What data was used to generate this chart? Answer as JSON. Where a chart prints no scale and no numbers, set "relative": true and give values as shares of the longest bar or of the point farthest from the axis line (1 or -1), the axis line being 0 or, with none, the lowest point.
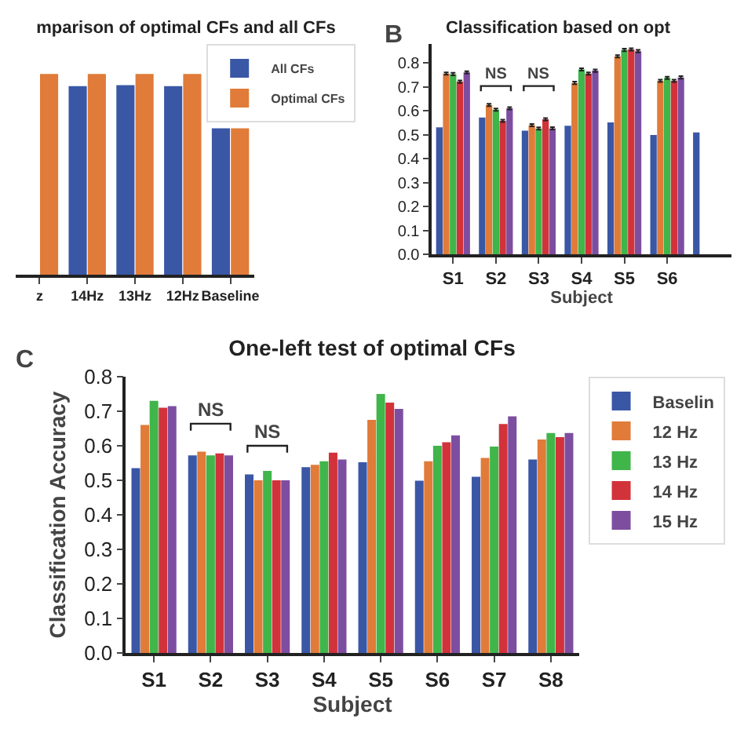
{
  "chart_data": [
    {
      "type": "bar",
      "title": "mparison of optimal CFs and all CFs",
      "categories": [
        "z",
        "14Hz",
        "13Hz",
        "12Hz",
        "Baseline"
      ],
      "relative": true,
      "tick_labels": "x",
      "legend": "top right",
      "grid": false,
      "series": [
        {
          "name": "All CFs",
          "color": "#3a57a6",
          "values": [
            null,
            0.94,
            0.945,
            0.94,
            0.73
          ]
        },
        {
          "name": "Optimal CFs",
          "color": "#e07b39",
          "values": [
            1,
            1,
            1,
            1,
            0.73
          ]
        }
      ]
    },
    {
      "type": "bar",
      "title": "Classification based on opt",
      "xlabel": "Subject",
      "categories": [
        "S1",
        "S2",
        "S3",
        "S4",
        "S5",
        "S6",
        null
      ],
      "ylim": [
        0,
        0.88
      ],
      "yticks": [
        {
          "value": 0,
          "label": "0.0"
        },
        0.1,
        0.2,
        0.3,
        0.4,
        0.5,
        0.6,
        0.7,
        0.8
      ],
      "grid": false,
      "legend": false,
      "annotations": [
        "B",
        "NS",
        "NS"
      ],
      "series": [
        {
          "color": "#3a57a6",
          "values": [
            0.531,
            0.572,
            0.517,
            0.538,
            0.552,
            0.499,
            0.51
          ]
        },
        {
          "color": "#e07b39",
          "values": [
            0.756,
            0.625,
            0.54,
            0.717,
            0.828,
            0.726,
            null
          ],
          "errors": [
            0.005,
            0.005,
            0.005,
            0.005,
            0.005,
            0.005,
            null
          ]
        },
        {
          "color": "#3fb54a",
          "values": [
            0.754,
            0.605,
            0.526,
            0.773,
            0.855,
            0.738,
            null
          ],
          "errors": [
            0.005,
            0.005,
            0.005,
            0.005,
            0.005,
            0.005,
            null
          ]
        },
        {
          "color": "#d2323a",
          "values": [
            0.722,
            0.558,
            0.565,
            0.756,
            0.857,
            0.726,
            null
          ],
          "errors": [
            0.005,
            0.005,
            0.005,
            0.005,
            0.005,
            0.005,
            null
          ]
        },
        {
          "color": "#7d4ea0",
          "values": [
            0.761,
            0.611,
            0.527,
            0.768,
            0.85,
            0.74,
            null
          ],
          "errors": [
            0.005,
            0.005,
            0.005,
            0.005,
            0.005,
            0.005,
            null
          ]
        }
      ]
    },
    {
      "type": "bar",
      "title": "One-left test of optimal CFs",
      "xlabel": "Subject",
      "ylabel": "Classification Accuracy",
      "categories": [
        "S1",
        "S2",
        "S3",
        "S4",
        "S5",
        "S6",
        "S7",
        "S8"
      ],
      "ylim": [
        0,
        0.8
      ],
      "yticks": [
        {
          "value": 0,
          "label": "0.0"
        },
        0.1,
        0.2,
        0.3,
        0.4,
        0.5,
        0.6,
        0.7,
        0.8
      ],
      "grid": false,
      "legend": "right",
      "annotations": [
        "C",
        "NS",
        "NS"
      ],
      "series": [
        {
          "name": "Baselin",
          "color": "#3a57a6",
          "values": [
            0.535,
            0.572,
            0.517,
            0.538,
            0.552,
            0.499,
            0.51,
            0.56
          ]
        },
        {
          "name": "12 Hz",
          "color": "#e07b39",
          "values": [
            0.66,
            0.583,
            0.5,
            0.545,
            0.675,
            0.555,
            0.565,
            0.618
          ]
        },
        {
          "name": "13 Hz",
          "color": "#3fb54a",
          "values": [
            0.73,
            0.572,
            0.527,
            0.555,
            0.75,
            0.6,
            0.598,
            0.637
          ]
        },
        {
          "name": "14 Hz",
          "color": "#d2323a",
          "values": [
            0.71,
            0.578,
            0.5,
            0.58,
            0.725,
            0.61,
            0.663,
            0.625
          ]
        },
        {
          "name": "15 Hz",
          "color": "#7d4ea0",
          "values": [
            0.715,
            0.572,
            0.5,
            0.56,
            0.707,
            0.63,
            0.685,
            0.637
          ]
        }
      ]
    }
  ]
}
